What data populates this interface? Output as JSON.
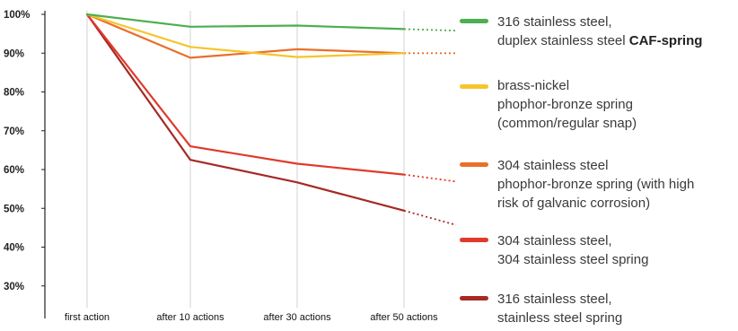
{
  "chart_data": {
    "type": "line",
    "title": "",
    "xlabel": "",
    "ylabel": "",
    "categories": [
      "first action",
      "after 10 actions",
      "after 30 actions",
      "after 50 actions"
    ],
    "y_tick_labels": [
      "100%",
      "90%",
      "80%",
      "70%",
      "60%",
      "50%",
      "40%",
      "30%"
    ],
    "ylim": [
      25,
      100
    ],
    "grid": {
      "vertical": true,
      "horizontal": false
    },
    "legend_placement": "right",
    "projection_style": "dotted",
    "series": [
      {
        "color": "#4caf50",
        "values": [
          100,
          96.8,
          97.1,
          96.2
        ],
        "projection_end": 95.8,
        "legend_lines": [
          "316 stainless steel,",
          "duplex stainless steel "
        ],
        "legend_bold": "CAF-spring"
      },
      {
        "color": "#f5c52c",
        "values": [
          100,
          91.6,
          89.0,
          90.0
        ],
        "projection_end": null,
        "legend_lines": [
          "brass-nickel",
          "phophor-bronze spring",
          "(common/regular snap)"
        ],
        "legend_bold": ""
      },
      {
        "color": "#e8702a",
        "values": [
          100,
          88.8,
          91.0,
          90.0
        ],
        "projection_end": 90.0,
        "legend_lines": [
          "304 stainless steel",
          "phophor-bronze spring (with high",
          "risk of galvanic corrosion)"
        ],
        "legend_bold": ""
      },
      {
        "color": "#e03a2a",
        "values": [
          100,
          66.0,
          61.5,
          58.7
        ],
        "projection_end": 56.9,
        "legend_lines": [
          "304 stainless steel,",
          "304 stainless steel spring"
        ],
        "legend_bold": ""
      },
      {
        "color": "#a52a25",
        "values": [
          100,
          62.5,
          56.7,
          49.4
        ],
        "projection_end": 45.7,
        "legend_lines": [
          "316 stainless steel,",
          "stainless steel spring"
        ],
        "legend_bold": ""
      }
    ]
  }
}
